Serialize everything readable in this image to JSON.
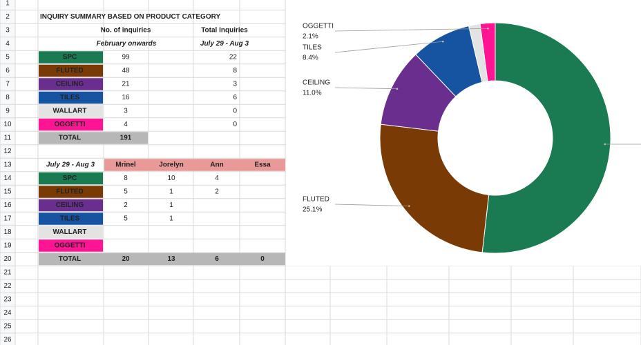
{
  "row_numbers": [
    1,
    2,
    3,
    4,
    5,
    6,
    7,
    8,
    9,
    10,
    11,
    12,
    13,
    14,
    15,
    16,
    17,
    18,
    19,
    20,
    21,
    22,
    23,
    24,
    25,
    26
  ],
  "summary": {
    "title": "INQUIRY SUMMARY BASED ON PRODUCT CATEGORY",
    "header": {
      "inquiries": "No. of inquiries",
      "total": "Total Inquiries",
      "period1": "February onwards",
      "period2": "July 29 - Aug 3"
    },
    "rows": [
      {
        "category": "SPC",
        "color": "#1a7a52",
        "inquiries": 99,
        "total": 22
      },
      {
        "category": "FLUTED",
        "color": "#7a3a05",
        "inquiries": 48,
        "total": 8
      },
      {
        "category": "CEILING",
        "color": "#6a2e8f",
        "inquiries": 21,
        "total": 3
      },
      {
        "category": "TILES",
        "color": "#1653a0",
        "inquiries": 16,
        "total": 6
      },
      {
        "category": "WALLART",
        "color": "#e3e3e3",
        "inquiries": 3,
        "total": 0
      },
      {
        "category": "OGGETTI",
        "color": "#ff1493",
        "inquiries": 4,
        "total": 0
      }
    ],
    "total": {
      "label": "TOTAL",
      "inquiries": 191
    }
  },
  "staff": {
    "period": "July 29 - Aug 3",
    "names": [
      "Mrinel",
      "Jorelyn",
      "Ann",
      "Essa"
    ],
    "rows": [
      {
        "category": "SPC",
        "color": "#1a7a52",
        "counts": [
          8,
          10,
          4,
          null
        ]
      },
      {
        "category": "FLUTED",
        "color": "#7a3a05",
        "counts": [
          5,
          1,
          2,
          null
        ]
      },
      {
        "category": "CEILING",
        "color": "#6a2e8f",
        "counts": [
          2,
          1,
          null,
          null
        ]
      },
      {
        "category": "TILES",
        "color": "#1653a0",
        "counts": [
          5,
          1,
          null,
          null
        ]
      },
      {
        "category": "WALLART",
        "color": "#e3e3e3",
        "counts": [
          null,
          null,
          null,
          null
        ]
      },
      {
        "category": "OGGETTI",
        "color": "#ff1493",
        "counts": [
          null,
          null,
          null,
          null
        ]
      }
    ],
    "total": {
      "label": "TOTAL",
      "counts": [
        20,
        13,
        6,
        0
      ]
    }
  },
  "chart_data": {
    "type": "pie",
    "donut": true,
    "categories": [
      null,
      "FLUTED",
      "CEILING",
      "TILES",
      null,
      "OGGETTI"
    ],
    "values": [
      51.8,
      25.1,
      11.0,
      8.4,
      1.6,
      2.1
    ],
    "value_labels": [
      null,
      "25.1%",
      "11.0%",
      "8.4%",
      null,
      "2.1%"
    ],
    "colors": [
      "#1a7a52",
      "#7a3a05",
      "#6a2e8f",
      "#1653a0",
      "#e3e3e3",
      "#ff1493"
    ]
  }
}
